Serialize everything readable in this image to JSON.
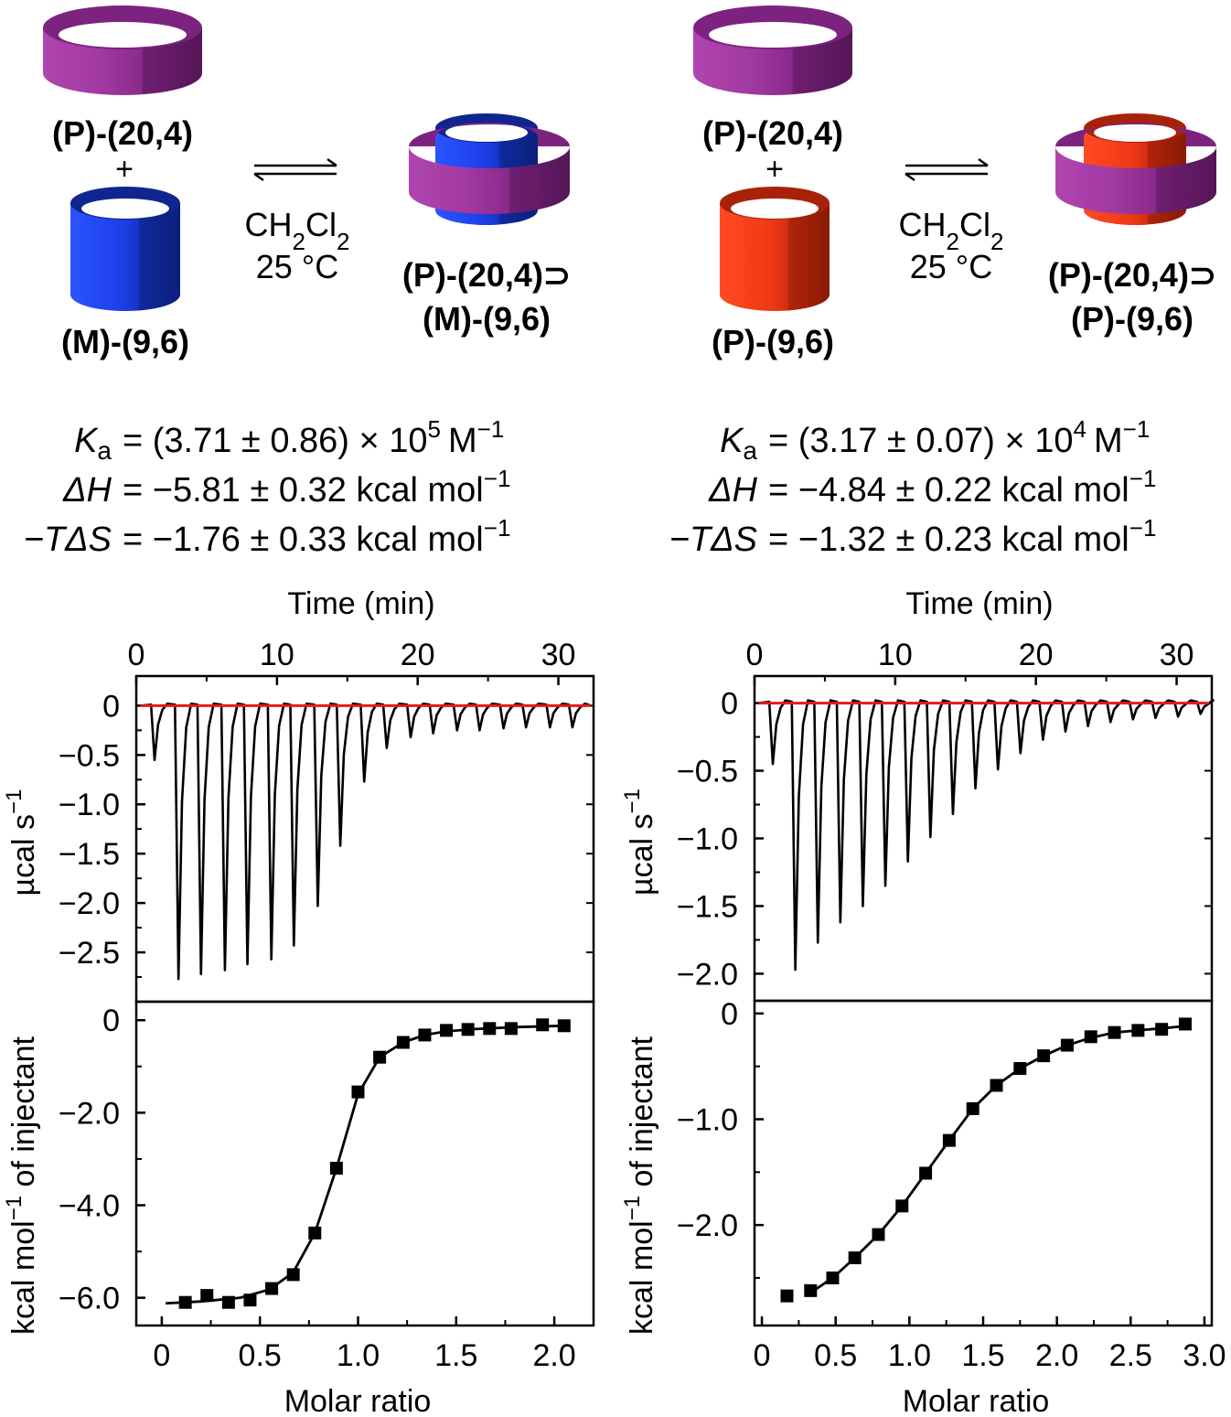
{
  "colors": {
    "host_purple": "#8e2a8f",
    "guest_blue": "#1a3ce0",
    "guest_red": "#ee3311",
    "fit_red": "#e41a1c"
  },
  "left": {
    "scheme": {
      "host_label": "(P)-(20,4)",
      "plus": "+",
      "guest_label": "(M)-(9,6)",
      "conditions_solvent": "CH2Cl2",
      "conditions_temp": "25 °C",
      "complex_line1": "(P)-(20,4)⊃",
      "complex_line2": "(M)-(9,6)"
    },
    "thermo": {
      "ka_value": "= (3.71 ± 0.86) × 10",
      "ka_exponent": "5",
      "ka_unit": "M",
      "dh_value": "= −5.81 ± 0.32 kcal mol",
      "tds_value": "= −1.76 ± 0.33 kcal mol",
      "unit_exponent": "−1"
    }
  },
  "right": {
    "scheme": {
      "host_label": "(P)-(20,4)",
      "plus": "+",
      "guest_label": "(P)-(9,6)",
      "conditions_solvent": "CH2Cl2",
      "conditions_temp": "25 °C",
      "complex_line1": "(P)-(20,4)⊃",
      "complex_line2": "(P)-(9,6)"
    },
    "thermo": {
      "ka_value": "= (3.17 ± 0.07) × 10",
      "ka_exponent": "4",
      "ka_unit": "M",
      "dh_value": "= −4.84 ± 0.22 kcal mol",
      "tds_value": "= −1.32 ± 0.23 kcal mol",
      "unit_exponent": "−1"
    }
  },
  "symbols": {
    "ka": "K",
    "ka_sub": "a",
    "dh": "ΔH",
    "tds": "−TΔS"
  },
  "chart_data": [
    {
      "id": "left-thermogram",
      "type": "line",
      "title": "",
      "xlabel": "Time (min)",
      "ylabel": "µcal s",
      "ylabel_exp": "−1",
      "xlim": [
        0,
        32.5
      ],
      "ylim": [
        -3.0,
        0.3
      ],
      "xticks": [
        0,
        10,
        20,
        30
      ],
      "yticks": [
        0,
        -0.5,
        -1.0,
        -1.5,
        -2.0,
        -2.5
      ],
      "ytick_labels": [
        "0",
        "−0.5",
        "−1.0",
        "−1.5",
        "−2.0",
        "−2.5"
      ],
      "injection_times": [
        1.2,
        2.9,
        4.5,
        6.2,
        7.8,
        9.5,
        11.1,
        12.8,
        14.4,
        16.1,
        17.7,
        19.4,
        21.0,
        22.7,
        24.3,
        26.0,
        27.6,
        29.3,
        30.9
      ],
      "peak_values": [
        -0.55,
        -2.77,
        -2.72,
        -2.68,
        -2.62,
        -2.57,
        -2.43,
        -2.03,
        -1.42,
        -0.77,
        -0.43,
        -0.32,
        -0.28,
        -0.25,
        -0.25,
        -0.23,
        -0.22,
        -0.22,
        -0.22
      ],
      "baseline_series": "red fitted baseline at 0"
    },
    {
      "id": "left-isotherm",
      "type": "scatter",
      "title": "",
      "xlabel": "Molar ratio",
      "ylabel": "kcal mol",
      "ylabel_exp": "−1",
      "ylabel_suffix": " of injectant",
      "xlim": [
        -0.13,
        2.2
      ],
      "ylim": [
        -6.6,
        0.4
      ],
      "xticks": [
        0,
        0.5,
        1.0,
        1.5,
        2.0
      ],
      "xtick_labels": [
        "0",
        "0.5",
        "1.0",
        "1.5",
        "2.0"
      ],
      "yticks": [
        0,
        -2.0,
        -4.0,
        -6.0
      ],
      "ytick_labels": [
        "0",
        "−2.0",
        "−4.0",
        "−6.0"
      ],
      "x": [
        0.12,
        0.23,
        0.34,
        0.45,
        0.56,
        0.67,
        0.78,
        0.89,
        1.0,
        1.11,
        1.23,
        1.34,
        1.45,
        1.56,
        1.67,
        1.78,
        1.94,
        2.05
      ],
      "y": [
        -6.1,
        -5.95,
        -6.1,
        -6.05,
        -5.8,
        -5.5,
        -4.6,
        -3.2,
        -1.55,
        -0.8,
        -0.48,
        -0.32,
        -0.22,
        -0.2,
        -0.18,
        -0.18,
        -0.1,
        -0.12
      ],
      "fit_x": [
        0.02,
        0.2,
        0.4,
        0.55,
        0.67,
        0.78,
        0.89,
        1.0,
        1.11,
        1.23,
        1.34,
        1.45,
        1.6,
        1.8,
        2.05
      ],
      "fit_y": [
        -6.12,
        -6.08,
        -6.0,
        -5.82,
        -5.45,
        -4.6,
        -3.2,
        -1.6,
        -0.8,
        -0.48,
        -0.32,
        -0.24,
        -0.19,
        -0.15,
        -0.12
      ]
    },
    {
      "id": "right-thermogram",
      "type": "line",
      "title": "",
      "xlabel": "Time (min)",
      "ylabel": "µcal s",
      "ylabel_exp": "−1",
      "xlim": [
        0,
        32.5
      ],
      "ylim": [
        -2.2,
        0.2
      ],
      "xticks": [
        0,
        10,
        20,
        30
      ],
      "yticks": [
        0,
        -0.5,
        -1.0,
        -1.5,
        -2.0
      ],
      "ytick_labels": [
        "0",
        "−0.5",
        "−1.0",
        "−1.5",
        "−2.0"
      ],
      "injection_times": [
        1.2,
        2.8,
        4.4,
        6.0,
        7.6,
        9.2,
        10.8,
        12.4,
        14.0,
        15.6,
        17.2,
        18.8,
        20.4,
        22.0,
        23.6,
        25.2,
        26.8,
        28.4,
        30.0,
        31.6
      ],
      "peak_values": [
        -0.45,
        -1.97,
        -1.77,
        -1.62,
        -1.5,
        -1.35,
        -1.17,
        -0.99,
        -0.82,
        -0.63,
        -0.49,
        -0.37,
        -0.27,
        -0.21,
        -0.17,
        -0.14,
        -0.12,
        -0.11,
        -0.1,
        -0.08
      ],
      "baseline_series": "red fitted baseline at 0"
    },
    {
      "id": "right-isotherm",
      "type": "scatter",
      "title": "",
      "xlabel": "Molar ratio",
      "ylabel": "kcal mol",
      "ylabel_exp": "−1",
      "ylabel_suffix": " of injectant",
      "xlim": [
        -0.05,
        3.05
      ],
      "ylim": [
        -2.95,
        0.12
      ],
      "xticks": [
        0,
        0.5,
        1.0,
        1.5,
        2.0,
        2.5,
        3.0
      ],
      "xtick_labels": [
        "0",
        "0.5",
        "1.0",
        "1.5",
        "2.0",
        "2.5",
        "3.0"
      ],
      "yticks": [
        0,
        -1.0,
        -2.0
      ],
      "ytick_labels": [
        "0",
        "−1.0",
        "−2.0"
      ],
      "x": [
        0.17,
        0.33,
        0.48,
        0.63,
        0.79,
        0.95,
        1.11,
        1.27,
        1.43,
        1.59,
        1.75,
        1.91,
        2.07,
        2.23,
        2.39,
        2.55,
        2.71,
        2.87
      ],
      "y": [
        -2.67,
        -2.62,
        -2.5,
        -2.31,
        -2.09,
        -1.82,
        -1.51,
        -1.2,
        -0.9,
        -0.68,
        -0.52,
        -0.4,
        -0.3,
        -0.22,
        -0.18,
        -0.16,
        -0.15,
        -0.1
      ],
      "fit_x": [
        0.33,
        0.48,
        0.63,
        0.79,
        0.95,
        1.11,
        1.27,
        1.43,
        1.59,
        1.75,
        1.91,
        2.07,
        2.23,
        2.39,
        2.55,
        2.71,
        2.87
      ],
      "fit_y": [
        -2.64,
        -2.5,
        -2.31,
        -2.09,
        -1.82,
        -1.51,
        -1.2,
        -0.9,
        -0.68,
        -0.52,
        -0.4,
        -0.3,
        -0.23,
        -0.18,
        -0.16,
        -0.14,
        -0.12
      ]
    }
  ]
}
